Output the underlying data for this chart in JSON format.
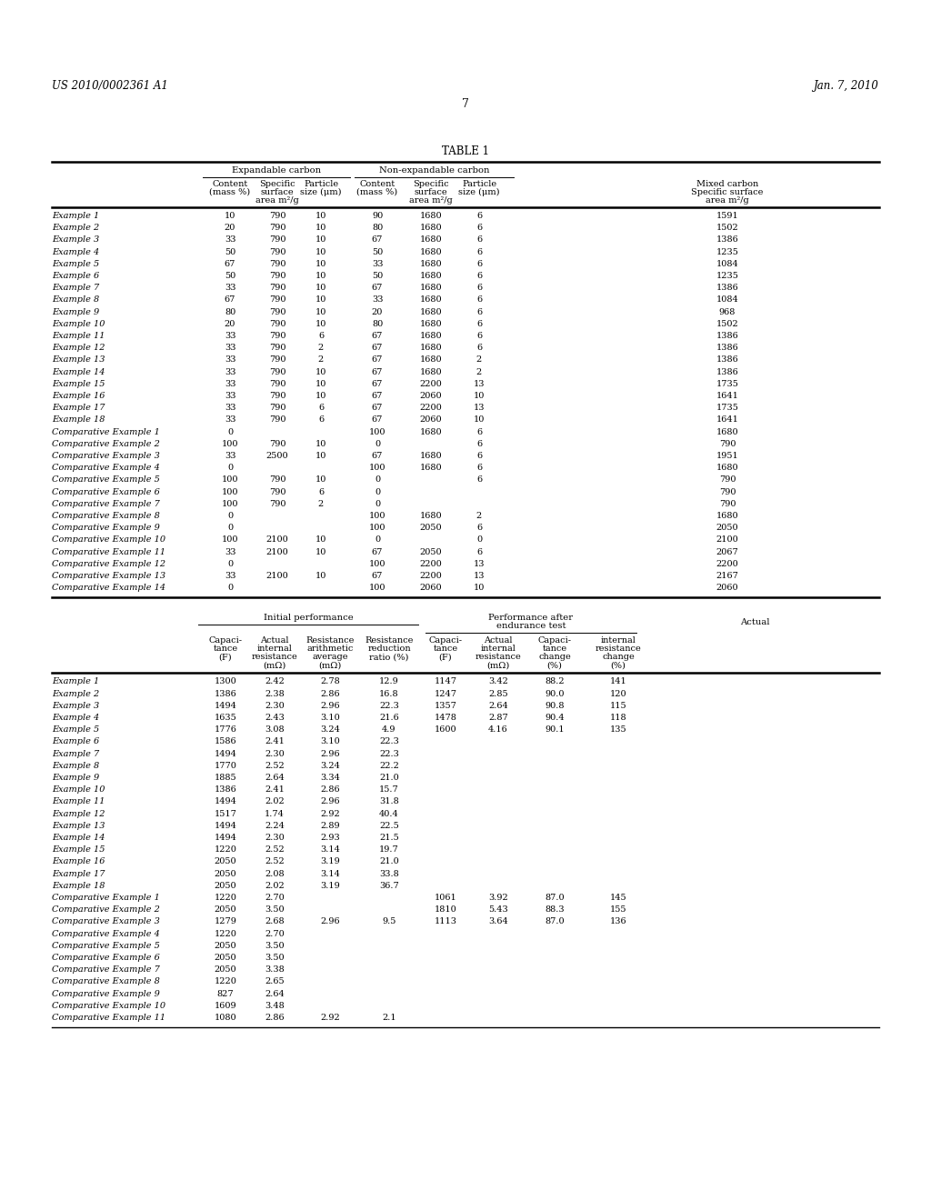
{
  "page_header_left": "US 2010/0002361 A1",
  "page_header_right": "Jan. 7, 2010",
  "page_number": "7",
  "table1_title": "TABLE 1",
  "bg_color": "#ffffff",
  "table1_rows": [
    [
      "Example 1",
      "10",
      "790",
      "10",
      "90",
      "1680",
      "6",
      "1591"
    ],
    [
      "Example 2",
      "20",
      "790",
      "10",
      "80",
      "1680",
      "6",
      "1502"
    ],
    [
      "Example 3",
      "33",
      "790",
      "10",
      "67",
      "1680",
      "6",
      "1386"
    ],
    [
      "Example 4",
      "50",
      "790",
      "10",
      "50",
      "1680",
      "6",
      "1235"
    ],
    [
      "Example 5",
      "67",
      "790",
      "10",
      "33",
      "1680",
      "6",
      "1084"
    ],
    [
      "Example 6",
      "50",
      "790",
      "10",
      "50",
      "1680",
      "6",
      "1235"
    ],
    [
      "Example 7",
      "33",
      "790",
      "10",
      "67",
      "1680",
      "6",
      "1386"
    ],
    [
      "Example 8",
      "67",
      "790",
      "10",
      "33",
      "1680",
      "6",
      "1084"
    ],
    [
      "Example 9",
      "80",
      "790",
      "10",
      "20",
      "1680",
      "6",
      "968"
    ],
    [
      "Example 10",
      "20",
      "790",
      "10",
      "80",
      "1680",
      "6",
      "1502"
    ],
    [
      "Example 11",
      "33",
      "790",
      "6",
      "67",
      "1680",
      "6",
      "1386"
    ],
    [
      "Example 12",
      "33",
      "790",
      "2",
      "67",
      "1680",
      "6",
      "1386"
    ],
    [
      "Example 13",
      "33",
      "790",
      "2",
      "67",
      "1680",
      "2",
      "1386"
    ],
    [
      "Example 14",
      "33",
      "790",
      "10",
      "67",
      "1680",
      "2",
      "1386"
    ],
    [
      "Example 15",
      "33",
      "790",
      "10",
      "67",
      "2200",
      "13",
      "1735"
    ],
    [
      "Example 16",
      "33",
      "790",
      "10",
      "67",
      "2060",
      "10",
      "1641"
    ],
    [
      "Example 17",
      "33",
      "790",
      "6",
      "67",
      "2200",
      "13",
      "1735"
    ],
    [
      "Example 18",
      "33",
      "790",
      "6",
      "67",
      "2060",
      "10",
      "1641"
    ],
    [
      "Comparative Example 1",
      "0",
      "",
      "",
      "100",
      "1680",
      "6",
      "1680"
    ],
    [
      "Comparative Example 2",
      "100",
      "790",
      "10",
      "0",
      "",
      "6",
      "790"
    ],
    [
      "Comparative Example 3",
      "33",
      "2500",
      "10",
      "67",
      "1680",
      "6",
      "1951"
    ],
    [
      "Comparative Example 4",
      "0",
      "",
      "",
      "100",
      "1680",
      "6",
      "1680"
    ],
    [
      "Comparative Example 5",
      "100",
      "790",
      "10",
      "0",
      "",
      "6",
      "790"
    ],
    [
      "Comparative Example 6",
      "100",
      "790",
      "6",
      "0",
      "",
      "",
      "790"
    ],
    [
      "Comparative Example 7",
      "100",
      "790",
      "2",
      "0",
      "",
      "",
      "790"
    ],
    [
      "Comparative Example 8",
      "0",
      "",
      "",
      "100",
      "1680",
      "2",
      "1680"
    ],
    [
      "Comparative Example 9",
      "0",
      "",
      "",
      "100",
      "2050",
      "6",
      "2050"
    ],
    [
      "Comparative Example 10",
      "100",
      "2100",
      "10",
      "0",
      "",
      "0",
      "2100"
    ],
    [
      "Comparative Example 11",
      "33",
      "2100",
      "10",
      "67",
      "2050",
      "6",
      "2067"
    ],
    [
      "Comparative Example 12",
      "0",
      "",
      "",
      "100",
      "2200",
      "13",
      "2200"
    ],
    [
      "Comparative Example 13",
      "33",
      "2100",
      "10",
      "67",
      "2200",
      "13",
      "2167"
    ],
    [
      "Comparative Example 14",
      "0",
      "",
      "",
      "100",
      "2060",
      "10",
      "2060"
    ]
  ],
  "table2_rows": [
    [
      "Example 1",
      "1300",
      "2.42",
      "2.78",
      "12.9",
      "1147",
      "3.42",
      "88.2",
      "141"
    ],
    [
      "Example 2",
      "1386",
      "2.38",
      "2.86",
      "16.8",
      "1247",
      "2.85",
      "90.0",
      "120"
    ],
    [
      "Example 3",
      "1494",
      "2.30",
      "2.96",
      "22.3",
      "1357",
      "2.64",
      "90.8",
      "115"
    ],
    [
      "Example 4",
      "1635",
      "2.43",
      "3.10",
      "21.6",
      "1478",
      "2.87",
      "90.4",
      "118"
    ],
    [
      "Example 5",
      "1776",
      "3.08",
      "3.24",
      "4.9",
      "1600",
      "4.16",
      "90.1",
      "135"
    ],
    [
      "Example 6",
      "1586",
      "2.41",
      "3.10",
      "22.3",
      "",
      "",
      "",
      ""
    ],
    [
      "Example 7",
      "1494",
      "2.30",
      "2.96",
      "22.3",
      "",
      "",
      "",
      ""
    ],
    [
      "Example 8",
      "1770",
      "2.52",
      "3.24",
      "22.2",
      "",
      "",
      "",
      ""
    ],
    [
      "Example 9",
      "1885",
      "2.64",
      "3.34",
      "21.0",
      "",
      "",
      "",
      ""
    ],
    [
      "Example 10",
      "1386",
      "2.41",
      "2.86",
      "15.7",
      "",
      "",
      "",
      ""
    ],
    [
      "Example 11",
      "1494",
      "2.02",
      "2.96",
      "31.8",
      "",
      "",
      "",
      ""
    ],
    [
      "Example 12",
      "1517",
      "1.74",
      "2.92",
      "40.4",
      "",
      "",
      "",
      ""
    ],
    [
      "Example 13",
      "1494",
      "2.24",
      "2.89",
      "22.5",
      "",
      "",
      "",
      ""
    ],
    [
      "Example 14",
      "1494",
      "2.30",
      "2.93",
      "21.5",
      "",
      "",
      "",
      ""
    ],
    [
      "Example 15",
      "1220",
      "2.52",
      "3.14",
      "19.7",
      "",
      "",
      "",
      ""
    ],
    [
      "Example 16",
      "2050",
      "2.52",
      "3.19",
      "21.0",
      "",
      "",
      "",
      ""
    ],
    [
      "Example 17",
      "2050",
      "2.08",
      "3.14",
      "33.8",
      "",
      "",
      "",
      ""
    ],
    [
      "Example 18",
      "2050",
      "2.02",
      "3.19",
      "36.7",
      "",
      "",
      "",
      ""
    ],
    [
      "Comparative Example 1",
      "1220",
      "2.70",
      "",
      "",
      "1061",
      "3.92",
      "87.0",
      "145"
    ],
    [
      "Comparative Example 2",
      "2050",
      "3.50",
      "",
      "",
      "1810",
      "5.43",
      "88.3",
      "155"
    ],
    [
      "Comparative Example 3",
      "1279",
      "2.68",
      "2.96",
      "9.5",
      "1113",
      "3.64",
      "87.0",
      "136"
    ],
    [
      "Comparative Example 4",
      "1220",
      "2.70",
      "",
      "",
      "",
      "",
      "",
      ""
    ],
    [
      "Comparative Example 5",
      "2050",
      "3.50",
      "",
      "",
      "",
      "",
      "",
      ""
    ],
    [
      "Comparative Example 6",
      "2050",
      "3.50",
      "",
      "",
      "",
      "",
      "",
      ""
    ],
    [
      "Comparative Example 7",
      "2050",
      "3.38",
      "",
      "",
      "",
      "",
      "",
      ""
    ],
    [
      "Comparative Example 8",
      "1220",
      "2.65",
      "",
      "",
      "",
      "",
      "",
      ""
    ],
    [
      "Comparative Example 9",
      "827",
      "2.64",
      "",
      "",
      "",
      "",
      "",
      ""
    ],
    [
      "Comparative Example 10",
      "1609",
      "3.48",
      "",
      "",
      "",
      "",
      "",
      ""
    ],
    [
      "Comparative Example 11",
      "1080",
      "2.86",
      "2.92",
      "2.1",
      "",
      "",
      "",
      ""
    ]
  ]
}
